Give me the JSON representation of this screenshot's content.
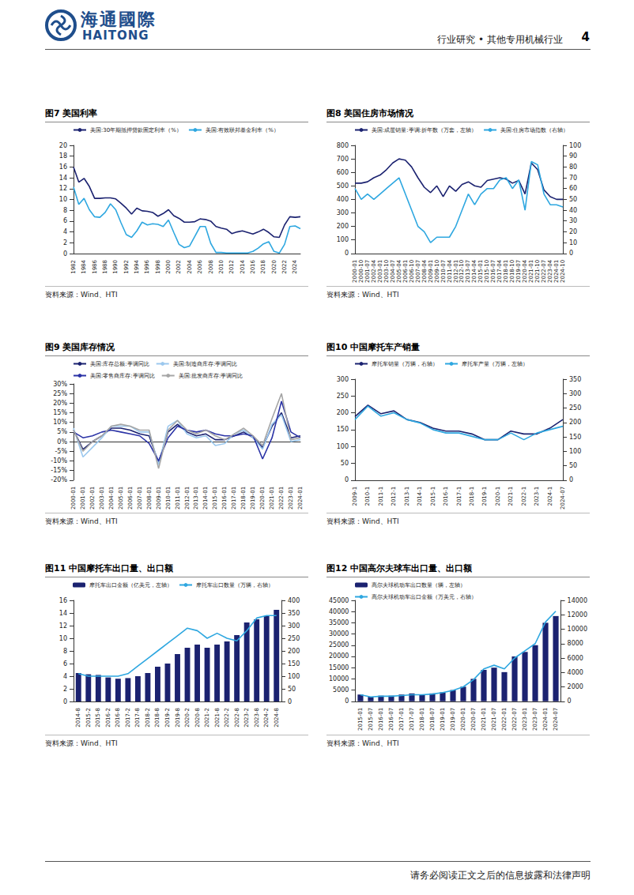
{
  "page": {
    "brand_cn": "海通國際",
    "brand_en": "HAITONG",
    "section": "行业研究 • 其他专用机械行业",
    "page_number": "4",
    "footer": "请务必阅读正文之后的信息披露和法律声明"
  },
  "chart_data": [
    {
      "type": "line",
      "title": "图7 美国利率",
      "source": "资料来源：Wind、HTI",
      "legend": "top",
      "grid": false,
      "categories": [
        "1982",
        null,
        "1984",
        null,
        "1986",
        null,
        "1988",
        null,
        "1990",
        null,
        "1992",
        null,
        "1994",
        null,
        "1996",
        null,
        "1998",
        null,
        "2000",
        null,
        "2002",
        null,
        "2004",
        null,
        "2006",
        null,
        "2008",
        null,
        "2010",
        null,
        "2012",
        null,
        "2014",
        null,
        "2016",
        null,
        "2018",
        null,
        "2020",
        null,
        "2022",
        null,
        "2024",
        null
      ],
      "ylim": [
        0,
        20
      ],
      "yticks": [
        0,
        2,
        4,
        6,
        8,
        10,
        12,
        14,
        16,
        18,
        20
      ],
      "series": [
        {
          "name": "美国:30年期抵押贷款固定利率（%）",
          "color": "#1b2270",
          "values": [
            16.0,
            13.2,
            13.9,
            12.4,
            10.2,
            10.2,
            10.3,
            10.3,
            10.1,
            9.3,
            8.4,
            7.3,
            8.4,
            7.9,
            7.8,
            7.6,
            6.9,
            7.4,
            8.1,
            7.0,
            6.5,
            5.8,
            5.8,
            5.9,
            6.4,
            6.3,
            6.0,
            5.0,
            4.7,
            4.5,
            3.7,
            4.0,
            4.2,
            3.9,
            3.6,
            4.0,
            4.5,
            3.9,
            3.1,
            3.0,
            5.3,
            6.8,
            6.7,
            6.8
          ]
        },
        {
          "name": "美国:有效联邦基金利率（%）",
          "color": "#2ea7e0",
          "values": [
            12.3,
            9.1,
            10.2,
            8.1,
            6.8,
            6.7,
            7.6,
            9.2,
            8.1,
            5.7,
            3.5,
            3.0,
            4.2,
            5.8,
            5.3,
            5.5,
            5.4,
            5.0,
            6.2,
            3.9,
            1.7,
            1.1,
            1.4,
            3.2,
            5.0,
            5.0,
            1.9,
            0.2,
            0.2,
            0.1,
            0.1,
            0.1,
            0.1,
            0.1,
            0.4,
            1.0,
            1.8,
            2.2,
            0.4,
            0.1,
            1.7,
            5.0,
            5.1,
            4.6
          ]
        }
      ]
    },
    {
      "type": "line",
      "title": "图8 美国住房市场情况",
      "source": "资料来源：Wind、HTI",
      "legend": "top",
      "grid": false,
      "categories": [
        "2000-01",
        "2000-10",
        "2001-07",
        "2002-04",
        "2003-01",
        "2003-10",
        "2004-07",
        "2005-04",
        "2006-01",
        "2006-10",
        "2007-07",
        "2008-04",
        "2009-01",
        "2009-10",
        "2010-07",
        "2011-04",
        "2012-01",
        "2012-10",
        "2013-07",
        "2014-04",
        "2015-01",
        "2015-10",
        "2016-07",
        "2017-04",
        "2018-01",
        "2018-10",
        "2019-07",
        "2020-04",
        "2021-01",
        "2021-10",
        "2022-07",
        "2023-04",
        "2024-01",
        "2024-10"
      ],
      "ylim": [
        0,
        800
      ],
      "yticks": [
        0,
        100,
        200,
        300,
        400,
        500,
        600,
        700,
        800
      ],
      "y2lim": [
        0,
        100
      ],
      "y2ticks": [
        0,
        10,
        20,
        30,
        40,
        50,
        60,
        70,
        80,
        90,
        100
      ],
      "series": [
        {
          "name": "美国:成屋销量:季调:折年数（万套，左轴）",
          "color": "#1b2270",
          "values": [
            520,
            520,
            530,
            560,
            580,
            620,
            670,
            700,
            690,
            640,
            560,
            490,
            450,
            500,
            420,
            500,
            460,
            510,
            530,
            500,
            490,
            540,
            550,
            560,
            550,
            520,
            540,
            440,
            670,
            620,
            470,
            420,
            400,
            400
          ]
        },
        {
          "name": "美国:住房市场指数（右轴）",
          "color": "#2ea7e0",
          "axis": "y2",
          "values": [
            60,
            50,
            55,
            50,
            55,
            60,
            65,
            70,
            55,
            40,
            25,
            20,
            10,
            15,
            15,
            15,
            25,
            40,
            55,
            45,
            55,
            60,
            60,
            68,
            70,
            60,
            68,
            40,
            85,
            82,
            55,
            45,
            45,
            43
          ]
        }
      ]
    },
    {
      "type": "line",
      "title": "图9 美国库存情况",
      "source": "资料来源：Wind、HTI",
      "legend": "top",
      "grid": false,
      "categories": [
        "2000-01",
        "2001-01",
        "2002-01",
        "2003-01",
        "2004-01",
        "2005-01",
        "2006-01",
        "2007-01",
        "2008-01",
        "2009-01",
        "2010-01",
        "2011-01",
        "2012-01",
        "2013-01",
        "2014-01",
        "2015-01",
        "2016-01",
        "2017-01",
        "2018-01",
        "2019-01",
        "2020-01",
        "2021-01",
        "2022-01",
        "2023-01",
        "2024-01"
      ],
      "ylim": [
        -20,
        30
      ],
      "yticks": [
        {
          "value": -20,
          "label": "-20%"
        },
        {
          "value": -15,
          "label": "-15%"
        },
        {
          "value": -10,
          "label": "-10%"
        },
        {
          "value": -5,
          "label": "-5%"
        },
        {
          "value": 0,
          "label": "0%"
        },
        {
          "value": 5,
          "label": "5%"
        },
        {
          "value": 10,
          "label": "10%"
        },
        {
          "value": 15,
          "label": "15%"
        },
        {
          "value": 20,
          "label": "20%"
        },
        {
          "value": 25,
          "label": "25%"
        },
        {
          "value": 30,
          "label": "30%"
        }
      ],
      "series": [
        {
          "name": "美国:库存总额:季调同比",
          "color": "#1b2270",
          "values": [
            6,
            -4,
            0,
            3,
            7,
            7,
            6,
            4,
            3,
            -11,
            5,
            9,
            5,
            3,
            4,
            1,
            1,
            3,
            5,
            2,
            -3,
            8,
            15,
            2,
            3
          ]
        },
        {
          "name": "美国:制造商库存:季调同比",
          "color": "#9cc8ee",
          "values": [
            7,
            -8,
            -3,
            2,
            8,
            8,
            8,
            5,
            5,
            -12,
            8,
            11,
            4,
            2,
            3,
            -2,
            -1,
            4,
            6,
            2,
            -4,
            9,
            14,
            0,
            1
          ]
        },
        {
          "name": "美国:零售商库存:季调同比",
          "color": "#2b33a6",
          "values": [
            5,
            2,
            3,
            5,
            6,
            5,
            4,
            3,
            -1,
            -10,
            2,
            8,
            6,
            5,
            6,
            4,
            3,
            3,
            4,
            3,
            -9,
            2,
            21,
            5,
            2
          ]
        },
        {
          "name": "美国:批发商库存:季调同比",
          "color": "#a6a6a6",
          "values": [
            6,
            -5,
            0,
            3,
            8,
            9,
            8,
            6,
            6,
            -14,
            6,
            11,
            6,
            4,
            6,
            3,
            1,
            4,
            7,
            3,
            -2,
            12,
            25,
            1,
            2
          ]
        }
      ]
    },
    {
      "type": "line",
      "title": "图10 中国摩托车产销量",
      "source": "资料来源：Wind、HTI",
      "legend": "top",
      "grid": false,
      "categories": [
        "2009-1",
        "2010-1",
        "2011-1",
        "2012-1",
        "2013-1",
        "2014-1",
        "2015-1",
        "2016-1",
        "2017-1",
        "2018-1",
        "2019-1",
        "2020-1",
        "2021-1",
        "2022-1",
        "2023-1",
        "2024-1",
        "2024-07"
      ],
      "ylim": [
        0,
        300
      ],
      "yticks": [
        0,
        50,
        100,
        150,
        200,
        250,
        300
      ],
      "y2lim": [
        0,
        350
      ],
      "y2ticks": [
        0,
        50,
        100,
        150,
        200,
        250,
        300,
        350
      ],
      "series": [
        {
          "name": "摩托车销量（万辆，右轴）",
          "color": "#1b2270",
          "axis": "y2",
          "values": [
            220,
            260,
            230,
            240,
            210,
            200,
            180,
            170,
            170,
            160,
            140,
            140,
            170,
            160,
            160,
            180,
            210
          ]
        },
        {
          "name": "摩托车产量（万辆，左轴）",
          "color": "#2ea7e0",
          "values": [
            180,
            220,
            190,
            200,
            180,
            170,
            150,
            140,
            140,
            130,
            120,
            120,
            140,
            120,
            140,
            150,
            160
          ]
        }
      ]
    },
    {
      "type": "bar",
      "title": "图11 中国摩托车出口量、出口额",
      "source": "资料来源：Wind、HTI",
      "legend": "top",
      "grid": false,
      "categories": [
        "2014-8",
        "2015-2",
        "2015-8",
        "2016-2",
        "2016-8",
        "2017-2",
        "2017-8",
        "2018-2",
        "2018-8",
        "2019-2",
        "2019-8",
        "2020-2",
        "2020-8",
        "2021-2",
        "2021-8",
        "2022-2",
        "2022-8",
        "2023-2",
        "2023-8",
        "2024-2",
        "2024-8"
      ],
      "ylim": [
        0,
        16
      ],
      "yticks": [
        0,
        2,
        4,
        6,
        8,
        10,
        12,
        14,
        16
      ],
      "y2lim": [
        0,
        400
      ],
      "y2ticks": [
        0,
        50,
        100,
        150,
        200,
        250,
        300,
        350,
        400
      ],
      "series": [
        {
          "name": "摩托车出口金额（亿美元，左轴）",
          "type": "bar",
          "color": "#1b2270",
          "values": [
            4.5,
            4.3,
            4.2,
            3.8,
            3.6,
            3.7,
            4.0,
            4.5,
            5.5,
            6.0,
            7.5,
            8.5,
            9.0,
            8.5,
            9.0,
            9.5,
            10.5,
            12.5,
            13.0,
            13.5,
            14.5
          ]
        },
        {
          "name": "摩托车出口数量（万辆，右轴）",
          "type": "line",
          "color": "#2ea7e0",
          "axis": "y2",
          "values": [
            110,
            100,
            100,
            100,
            100,
            110,
            140,
            170,
            200,
            230,
            260,
            290,
            280,
            250,
            270,
            250,
            240,
            280,
            330,
            340,
            340
          ]
        }
      ]
    },
    {
      "type": "bar",
      "title": "图12 中国高尔夫球车出口量、出口额",
      "source": "资料来源：Wind、HTI",
      "legend": "top",
      "grid": false,
      "categories": [
        "2015-01",
        "2015-07",
        "2016-01",
        "2016-07",
        "2017-01",
        "2017-07",
        "2018-01",
        "2018-07",
        "2019-01",
        "2019-07",
        "2020-01",
        "2020-07",
        "2021-01",
        "2021-07",
        "2022-01",
        "2022-07",
        "2023-01",
        "2023-07",
        "2024-01",
        "2024-07"
      ],
      "ylim": [
        0,
        45000
      ],
      "yticks": [
        0,
        5000,
        10000,
        15000,
        20000,
        25000,
        30000,
        35000,
        40000,
        45000
      ],
      "y2lim": [
        0,
        14000
      ],
      "y2ticks": [
        0,
        2000,
        4000,
        6000,
        8000,
        10000,
        12000,
        14000
      ],
      "series": [
        {
          "name": "高尔夫球机动车出口数量（辆，左轴）",
          "type": "bar",
          "color": "#1b2270",
          "values": [
            3000,
            2000,
            2500,
            2500,
            3000,
            3500,
            3000,
            3500,
            4000,
            5000,
            6500,
            10000,
            14000,
            15000,
            13000,
            20000,
            22000,
            25000,
            35000,
            38000
          ]
        },
        {
          "name": "高尔夫球机动车出口金额（万美元，右轴）",
          "type": "line",
          "color": "#2ea7e0",
          "axis": "y2",
          "values": [
            900,
            600,
            700,
            700,
            800,
            900,
            900,
            1000,
            1200,
            1500,
            2000,
            3000,
            4500,
            5000,
            4500,
            6000,
            7000,
            8000,
            11000,
            12500
          ]
        }
      ]
    }
  ]
}
